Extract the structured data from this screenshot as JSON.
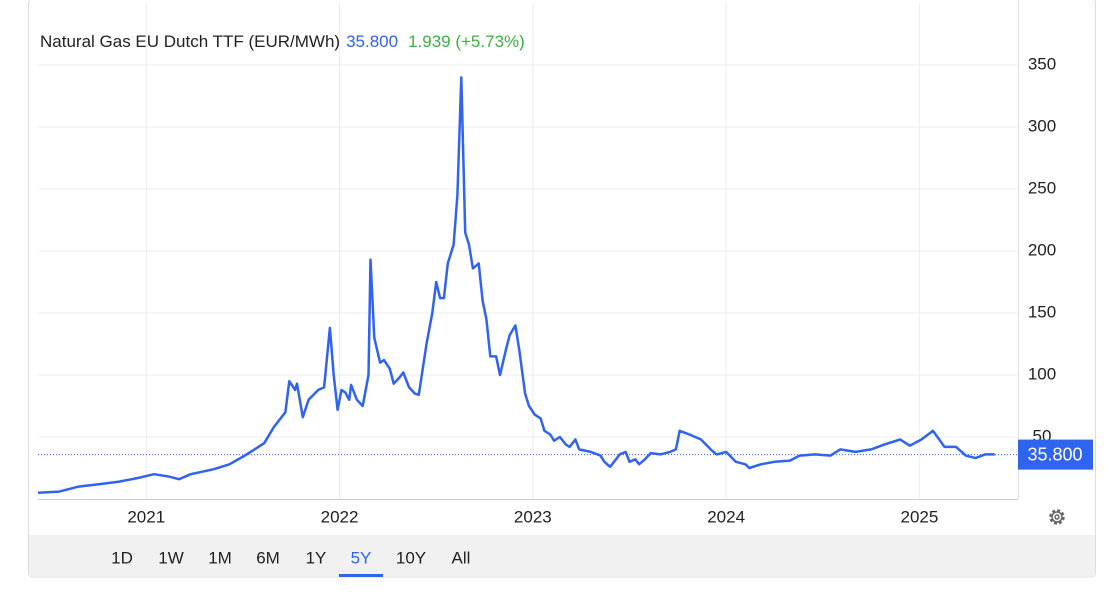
{
  "chart_data": {
    "type": "line",
    "title": "Natural Gas EU Dutch TTF (EUR/MWh)",
    "last": {
      "value": 35.8,
      "label": "35.800"
    },
    "change": "1.939 (+5.73%)",
    "color": "#2f63f0",
    "x": [
      2020.44,
      2020.55,
      2020.65,
      2020.76,
      2020.86,
      2020.96,
      2021.04,
      2021.12,
      2021.17,
      2021.23,
      2021.35,
      2021.43,
      2021.51,
      2021.56,
      2021.61,
      2021.66,
      2021.72,
      2021.74,
      2021.77,
      2021.78,
      2021.81,
      2021.84,
      2021.89,
      2021.92,
      2021.95,
      2021.97,
      2021.99,
      2022.01,
      2022.03,
      2022.05,
      2022.06,
      2022.09,
      2022.12,
      2022.15,
      2022.16,
      2022.18,
      2022.21,
      2022.23,
      2022.26,
      2022.28,
      2022.31,
      2022.33,
      2022.36,
      2022.39,
      2022.41,
      2022.45,
      2022.48,
      2022.5,
      2022.52,
      2022.54,
      2022.56,
      2022.59,
      2022.61,
      2022.63,
      2022.65,
      2022.67,
      2022.69,
      2022.72,
      2022.74,
      2022.76,
      2022.78,
      2022.81,
      2022.83,
      2022.86,
      2022.88,
      2022.91,
      2022.93,
      2022.96,
      2022.98,
      2023.01,
      2023.04,
      2023.06,
      2023.09,
      2023.11,
      2023.14,
      2023.17,
      2023.19,
      2023.22,
      2023.24,
      2023.3,
      2023.35,
      2023.37,
      2023.4,
      2023.42,
      2023.45,
      2023.48,
      2023.5,
      2023.53,
      2023.55,
      2023.58,
      2023.61,
      2023.66,
      2023.71,
      2023.74,
      2023.76,
      2023.81,
      2023.87,
      2023.92,
      2023.95,
      2024.0,
      2024.05,
      2024.1,
      2024.12,
      2024.18,
      2024.25,
      2024.33,
      2024.38,
      2024.46,
      2024.54,
      2024.59,
      2024.67,
      2024.75,
      2024.82,
      2024.9,
      2024.95,
      2025.01,
      2025.07,
      2025.13,
      2025.19,
      2025.24,
      2025.29,
      2025.34,
      2025.39
    ],
    "values": [
      5,
      6,
      10,
      12,
      14,
      17,
      20,
      18,
      16,
      20,
      24,
      28,
      35,
      40,
      45,
      58,
      70,
      95,
      88,
      93,
      66,
      80,
      88,
      90,
      138,
      100,
      72,
      88,
      86,
      80,
      92,
      80,
      75,
      100,
      193,
      130,
      110,
      112,
      105,
      93,
      98,
      102,
      90,
      85,
      84,
      125,
      150,
      175,
      162,
      162,
      190,
      205,
      245,
      340,
      215,
      205,
      186,
      190,
      160,
      145,
      115,
      115,
      100,
      120,
      132,
      140,
      120,
      85,
      75,
      68,
      65,
      55,
      52,
      47,
      50,
      44,
      42,
      48,
      40,
      38,
      35,
      30,
      26,
      30,
      36,
      38,
      30,
      32,
      28,
      32,
      37,
      36,
      38,
      40,
      55,
      52,
      48,
      40,
      36,
      38,
      30,
      28,
      25,
      28,
      30,
      31,
      35,
      36,
      35,
      40,
      38,
      40,
      44,
      48,
      43,
      48,
      55,
      42,
      42,
      35,
      33,
      36,
      36
    ],
    "xlim": [
      2020.44,
      2025.51
    ],
    "xticks": [
      2021,
      2022,
      2023,
      2024,
      2025
    ],
    "ylim": [
      0,
      400
    ],
    "yticks": [
      50,
      100,
      150,
      200,
      250,
      300,
      350
    ],
    "grid": true
  },
  "ui": {
    "ranges": [
      "1D",
      "1W",
      "1M",
      "6M",
      "1Y",
      "5Y",
      "10Y",
      "All"
    ],
    "active_range_index": 5
  }
}
